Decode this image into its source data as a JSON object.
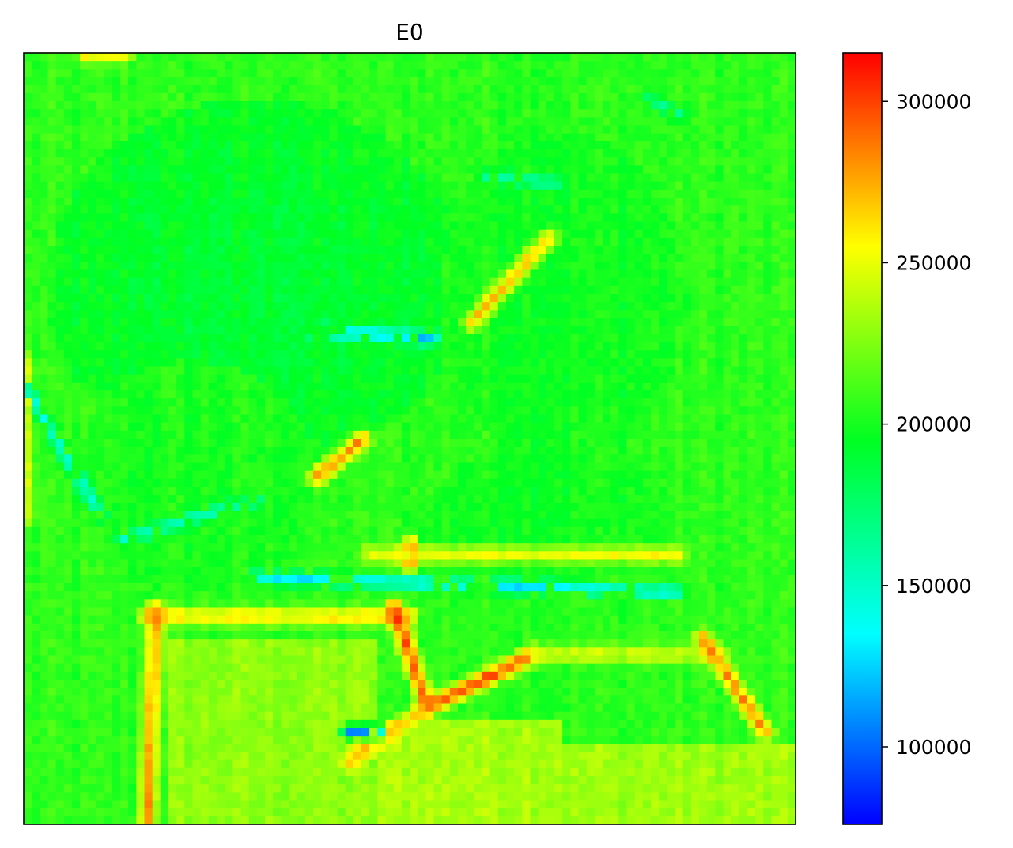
{
  "chart_data": {
    "type": "heatmap",
    "title": "E0",
    "xlabel": "",
    "ylabel": "",
    "show_axis_ticks": false,
    "grid": false,
    "colormap": "hsv-like (blue → cyan → green → yellow → red)",
    "colorbar": {
      "placement": "right",
      "range": [
        76000,
        315000
      ],
      "ticks": [
        100000,
        150000,
        200000,
        250000,
        300000
      ],
      "tick_labels": [
        "100000",
        "150000",
        "200000",
        "250000",
        "300000"
      ],
      "stops": [
        {
          "value": 76000,
          "color": "#0000ff"
        },
        {
          "value": 135000,
          "color": "#00ffff"
        },
        {
          "value": 195000,
          "color": "#00ff22"
        },
        {
          "value": 255000,
          "color": "#ffff00"
        },
        {
          "value": 315000,
          "color": "#ff0000"
        }
      ]
    },
    "grid_size": {
      "rows": 96,
      "cols": 96
    },
    "field_description": {
      "background": 205000,
      "regions": [
        {
          "kind": "ellipse",
          "cx": 0.3,
          "cy": 0.3,
          "rx": 0.27,
          "ry": 0.24,
          "value": 190000
        },
        {
          "kind": "ellipse",
          "cx": 0.22,
          "cy": 0.55,
          "rx": 0.16,
          "ry": 0.15,
          "value": 200000
        },
        {
          "kind": "ellipse",
          "cx": 0.7,
          "cy": 0.32,
          "rx": 0.16,
          "ry": 0.22,
          "value": 198000
        },
        {
          "kind": "ellipse",
          "cx": 0.68,
          "cy": 0.6,
          "rx": 0.16,
          "ry": 0.09,
          "value": 198000
        },
        {
          "kind": "rect",
          "x0": 0.19,
          "y0": 0.76,
          "x1": 0.46,
          "y1": 1.0,
          "value": 228000
        },
        {
          "kind": "rect",
          "x0": 0.46,
          "y0": 0.86,
          "x1": 0.7,
          "y1": 1.0,
          "value": 235000
        },
        {
          "kind": "rect",
          "x0": 0.7,
          "y0": 0.9,
          "x1": 1.0,
          "y1": 1.0,
          "value": 232000
        }
      ],
      "ridges": [
        {
          "from": [
            0.16,
            0.73
          ],
          "to": [
            0.5,
            0.73
          ],
          "value": 270000
        },
        {
          "from": [
            0.17,
            0.72
          ],
          "to": [
            0.16,
            1.0
          ],
          "value": 285000
        },
        {
          "from": [
            0.48,
            0.72
          ],
          "to": [
            0.52,
            0.84
          ],
          "value": 300000
        },
        {
          "from": [
            0.52,
            0.85
          ],
          "to": [
            0.66,
            0.78
          ],
          "value": 305000
        },
        {
          "from": [
            0.66,
            0.78
          ],
          "to": [
            0.9,
            0.78
          ],
          "value": 250000
        },
        {
          "from": [
            0.88,
            0.76
          ],
          "to": [
            0.96,
            0.88
          ],
          "value": 285000
        },
        {
          "from": [
            0.5,
            0.64
          ],
          "to": [
            0.5,
            0.66
          ],
          "value": 310000
        },
        {
          "from": [
            0.45,
            0.65
          ],
          "to": [
            0.85,
            0.65
          ],
          "value": 255000
        },
        {
          "from": [
            0.58,
            0.35
          ],
          "to": [
            0.68,
            0.24
          ],
          "value": 275000
        },
        {
          "from": [
            0.38,
            0.55
          ],
          "to": [
            0.44,
            0.5
          ],
          "value": 285000
        },
        {
          "from": [
            0.42,
            0.92
          ],
          "to": [
            0.52,
            0.85
          ],
          "value": 270000
        },
        {
          "from": [
            0.0,
            0.4
          ],
          "to": [
            0.0,
            0.6
          ],
          "value": 255000
        },
        {
          "from": [
            0.08,
            0.0
          ],
          "to": [
            0.13,
            0.0
          ],
          "value": 270000
        }
      ],
      "troughs": [
        {
          "from": [
            0.0,
            0.43
          ],
          "to": [
            0.1,
            0.6
          ],
          "value": 140000
        },
        {
          "from": [
            0.13,
            0.63
          ],
          "to": [
            0.3,
            0.58
          ],
          "value": 150000
        },
        {
          "from": [
            0.37,
            0.36
          ],
          "to": [
            0.53,
            0.37
          ],
          "value": 120000
        },
        {
          "from": [
            0.3,
            0.68
          ],
          "to": [
            0.85,
            0.7
          ],
          "value": 130000
        },
        {
          "from": [
            0.6,
            0.16
          ],
          "to": [
            0.7,
            0.17
          ],
          "value": 160000
        },
        {
          "from": [
            0.42,
            0.88
          ],
          "to": [
            0.46,
            0.88
          ],
          "value": 100000
        },
        {
          "from": [
            0.81,
            0.06
          ],
          "to": [
            0.85,
            0.08
          ],
          "value": 160000
        }
      ],
      "noise_amplitude": 12000
    }
  }
}
